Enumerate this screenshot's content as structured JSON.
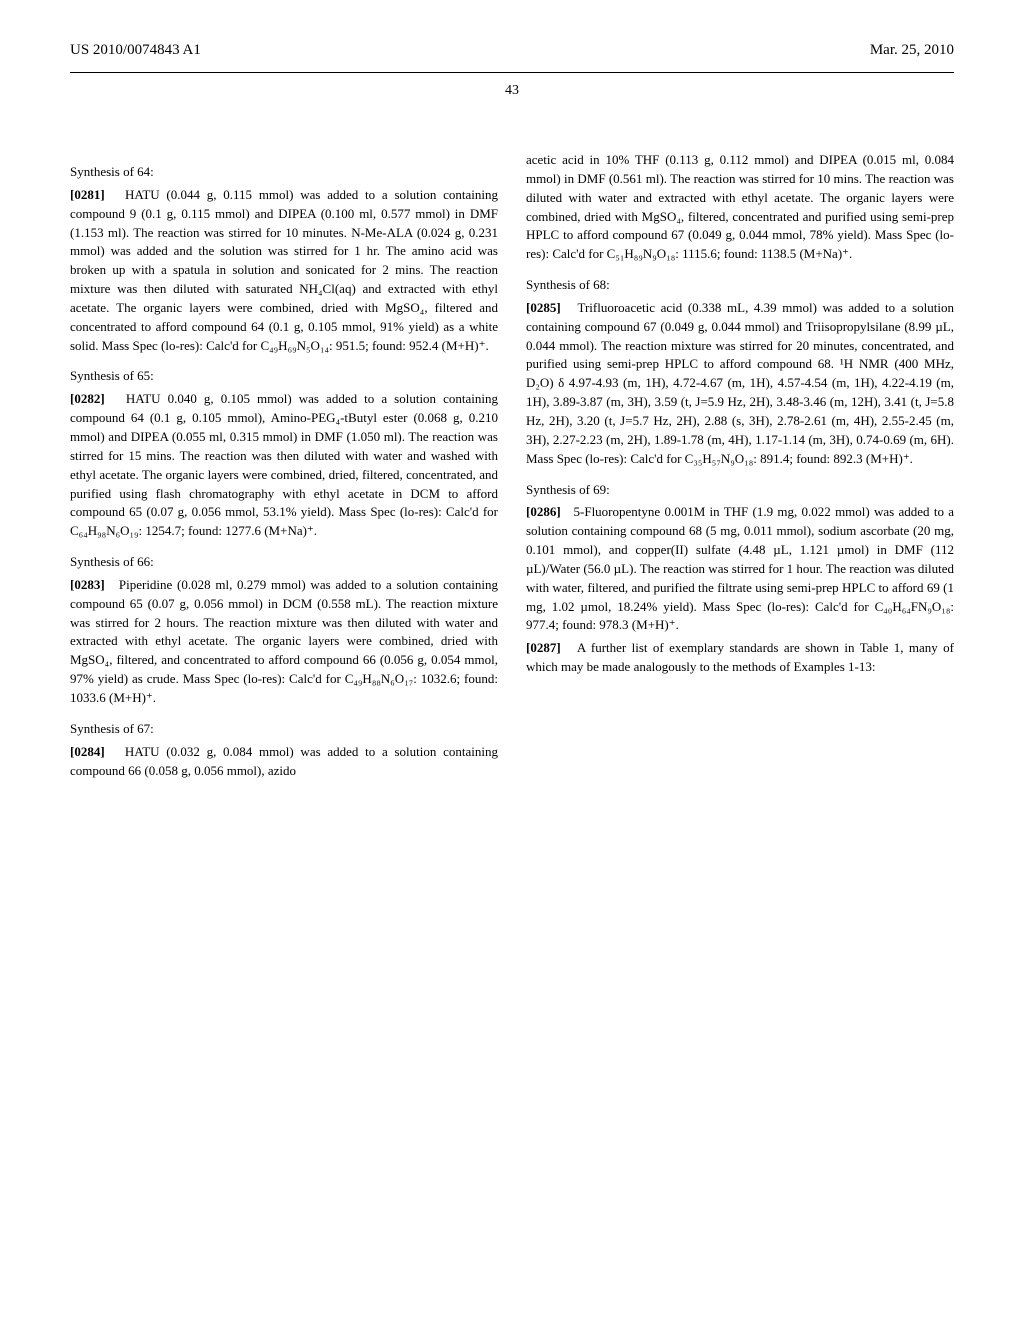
{
  "header": {
    "pub_number": "US 2010/0074843 A1",
    "pub_date": "Mar. 25, 2010",
    "page_number": "43"
  },
  "left_column": {
    "sec64_title": "Synthesis of 64:",
    "p0281_num": "[0281]",
    "p0281_text": "HATU (0.044 g, 0.115 mmol) was added to a solution containing compound 9 (0.1 g, 0.115 mmol) and DIPEA (0.100 ml, 0.577 mmol) in DMF (1.153 ml). The reaction was stirred for 10 minutes. N-Me-ALA (0.024 g, 0.231 mmol) was added and the solution was stirred for 1 hr. The amino acid was broken up with a spatula in solution and sonicated for 2 mins. The reaction mixture was then diluted with saturated NH₄Cl(aq) and extracted with ethyl acetate. The organic layers were combined, dried with MgSO₄, filtered and concentrated to afford compound 64 (0.1 g, 0.105 mmol, 91% yield) as a white solid. Mass Spec (lo-res): Calc'd for C₄₉H₆₉N₅O₁₄: 951.5; found: 952.4 (M+H)⁺.",
    "sec65_title": "Synthesis of 65:",
    "p0282_num": "[0282]",
    "p0282_text": "HATU 0.040 g, 0.105 mmol) was added to a solution containing compound 64 (0.1 g, 0.105 mmol), Amino-PEG₄-tButyl ester (0.068 g, 0.210 mmol) and DIPEA (0.055 ml, 0.315 mmol) in DMF (1.050 ml). The reaction was stirred for 15 mins. The reaction was then diluted with water and washed with ethyl acetate. The organic layers were combined, dried, filtered, concentrated, and purified using flash chromatography with ethyl acetate in DCM to afford compound 65 (0.07 g, 0.056 mmol, 53.1% yield). Mass Spec (lo-res): Calc'd for C₆₄H₉₈N₆O₁₉: 1254.7; found: 1277.6 (M+Na)⁺.",
    "sec66_title": "Synthesis of 66:",
    "p0283_num": "[0283]",
    "p0283_text": "Piperidine (0.028 ml, 0.279 mmol) was added to a solution containing compound 65 (0.07 g, 0.056 mmol) in DCM (0.558 mL). The reaction mixture was stirred for 2 hours. The reaction mixture was then diluted with water and extracted with ethyl acetate. The organic layers were combined, dried with MgSO₄, filtered, and concentrated to afford compound 66 (0.056 g, 0.054 mmol, 97% yield) as crude. Mass Spec (lo-res): Calc'd for C₄₉H₈₈N₆O₁₇: 1032.6; found: 1033.6 (M+H)⁺.",
    "sec67_title": "Synthesis of 67:",
    "p0284_num": "[0284]",
    "p0284_text": "HATU (0.032 g, 0.084 mmol) was added to a solution containing compound 66 (0.058 g, 0.056 mmol), azido"
  },
  "right_column": {
    "p0284_cont": "acetic acid in 10% THF (0.113 g, 0.112 mmol) and DIPEA (0.015 ml, 0.084 mmol) in DMF (0.561 ml). The reaction was stirred for 10 mins. The reaction was diluted with water and extracted with ethyl acetate. The organic layers were combined, dried with MgSO₄, filtered, concentrated and purified using semi-prep HPLC to afford compound 67 (0.049 g, 0.044 mmol, 78% yield). Mass Spec (lo-res): Calc'd for C₅₁H₈₉N₉O₁₈: 1115.6; found: 1138.5 (M+Na)⁺.",
    "sec68_title": "Synthesis of 68:",
    "p0285_num": "[0285]",
    "p0285_text": "Trifluoroacetic acid (0.338 mL, 4.39 mmol) was added to a solution containing compound 67 (0.049 g, 0.044 mmol) and Triisopropylsilane (8.99 µL, 0.044 mmol). The reaction mixture was stirred for 20 minutes, concentrated, and purified using semi-prep HPLC to afford compound 68. ¹H NMR (400 MHz, D₂O) δ 4.97-4.93 (m, 1H), 4.72-4.67 (m, 1H), 4.57-4.54 (m, 1H), 4.22-4.19 (m, 1H), 3.89-3.87 (m, 3H), 3.59 (t, J=5.9 Hz, 2H), 3.48-3.46 (m, 12H), 3.41 (t, J=5.8 Hz, 2H), 3.20 (t, J=5.7 Hz, 2H), 2.88 (s, 3H), 2.78-2.61 (m, 4H), 2.55-2.45 (m, 3H), 2.27-2.23 (m, 2H), 1.89-1.78 (m, 4H), 1.17-1.14 (m, 3H), 0.74-0.69 (m, 6H). Mass Spec (lo-res): Calc'd for C₃₅H₅₇N₉O₁₈: 891.4; found: 892.3 (M+H)⁺.",
    "sec69_title": "Synthesis of 69:",
    "p0286_num": "[0286]",
    "p0286_text": "5-Fluoropentyne 0.001M in THF (1.9 mg, 0.022 mmol) was added to a solution containing compound 68 (5 mg, 0.011 mmol), sodium ascorbate (20 mg, 0.101 mmol), and copper(II) sulfate (4.48 µL, 1.121 µmol) in DMF (112 µL)/Water (56.0 µL). The reaction was stirred for 1 hour. The reaction was diluted with water, filtered, and purified the filtrate using semi-prep HPLC to afford 69 (1 mg, 1.02 µmol, 18.24% yield). Mass Spec (lo-res): Calc'd for C₄₀H₆₄FN₉O₁₈: 977.4; found: 978.3 (M+H)⁺.",
    "p0287_num": "[0287]",
    "p0287_text": "A further list of exemplary standards are shown in Table 1, many of which may be made analogously to the methods of Examples 1-13:"
  }
}
